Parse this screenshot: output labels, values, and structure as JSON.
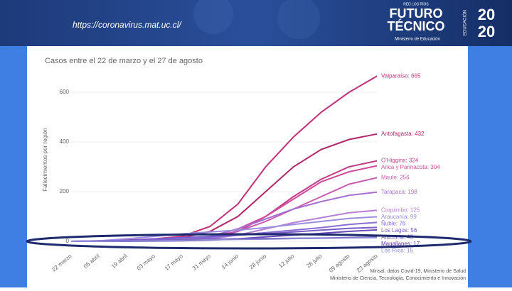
{
  "header": {
    "url": "https://coronavirus.mat.uc.cl/",
    "network": "RED LOS RÍOS",
    "brand_line1": "FUTURO",
    "brand_line2": "TÉCNICO",
    "ministry": "Ministerio de Educación",
    "side": "EDUCACIÓN",
    "year_top": "20",
    "year_bottom": "20"
  },
  "chart_data": {
    "type": "line",
    "title": "Casos entre el 22 de marzo y el 27 de agosto",
    "y_label": "Fallecimientos por región",
    "source": [
      "Minsal, datos Covid-19, Ministerio de Salud",
      "Ministerio de Ciencia, Tecnología, Conocimiento e Innovación"
    ],
    "categories": [
      "22 marzo",
      "05 abril",
      "19 abril",
      "03 mayo",
      "17 mayo",
      "31 mayo",
      "14 junio",
      "28 junio",
      "12 julio",
      "26 julio",
      "09 agosto",
      "23 agosto"
    ],
    "ylim": [
      0,
      700
    ],
    "yticks": [
      0,
      200,
      400,
      600
    ],
    "series": [
      {
        "name": "Valparaíso",
        "end_label": "Valparaíso: 665",
        "color": "#c2307a",
        "values": [
          0,
          2,
          5,
          10,
          20,
          60,
          150,
          300,
          420,
          520,
          600,
          665
        ]
      },
      {
        "name": "Antofagasta",
        "end_label": "Antofagasta: 432",
        "color": "#b0286c",
        "values": [
          0,
          1,
          2,
          5,
          15,
          40,
          100,
          200,
          300,
          370,
          410,
          432
        ]
      },
      {
        "name": "O'Higgins",
        "end_label": "O'Higgins: 324",
        "color": "#c33c88",
        "values": [
          0,
          0,
          1,
          2,
          5,
          15,
          40,
          100,
          180,
          250,
          300,
          324
        ]
      },
      {
        "name": "Arica y Parinacota",
        "end_label": "Arica y Parinacota: 304",
        "color": "#d04c98",
        "values": [
          0,
          1,
          3,
          5,
          10,
          20,
          50,
          100,
          170,
          240,
          280,
          304
        ]
      },
      {
        "name": "Maule",
        "end_label": "Maule: 256",
        "color": "#c95bb0",
        "values": [
          0,
          1,
          3,
          6,
          10,
          20,
          40,
          80,
          130,
          180,
          230,
          256
        ]
      },
      {
        "name": "Tarapacá",
        "end_label": "Tarapacá: 198",
        "color": "#a66fd2",
        "values": [
          0,
          0,
          1,
          3,
          8,
          20,
          50,
          90,
          130,
          160,
          185,
          198
        ]
      },
      {
        "name": "Coquimbo",
        "end_label": "Coquimbo: 125",
        "color": "#b77fd6",
        "values": [
          0,
          0,
          1,
          2,
          4,
          10,
          25,
          50,
          75,
          95,
          115,
          125
        ]
      },
      {
        "name": "Araucanía",
        "end_label": "Araucanía: 99",
        "color": "#9b8ee0",
        "values": [
          0,
          2,
          10,
          20,
          30,
          38,
          45,
          55,
          68,
          80,
          92,
          99
        ]
      },
      {
        "name": "Ñuble",
        "end_label": "Ñuble: 76",
        "color": "#8a6fd8",
        "values": [
          0,
          1,
          3,
          6,
          10,
          15,
          25,
          35,
          45,
          55,
          68,
          76
        ]
      },
      {
        "name": "Los Lagos",
        "end_label": "Los Lagos: 56",
        "color": "#7a5cc8",
        "values": [
          0,
          1,
          4,
          10,
          15,
          20,
          25,
          30,
          38,
          45,
          52,
          56
        ]
      },
      {
        "name": "Atacama",
        "end_label": "Atacama: 46",
        "color": "#6a4ab8",
        "values": [
          0,
          0,
          0,
          1,
          2,
          5,
          10,
          18,
          25,
          32,
          40,
          46
        ]
      },
      {
        "name": "Magallanes",
        "end_label": "Magallanes: 17",
        "color": "#5a3aa8",
        "values": [
          0,
          0,
          1,
          3,
          5,
          8,
          10,
          11,
          12,
          13,
          15,
          17
        ]
      },
      {
        "name": "Los Ríos",
        "end_label": "Los Ríos: 15",
        "color": "#8d8ad8",
        "values": [
          0,
          0,
          1,
          2,
          4,
          6,
          8,
          9,
          11,
          12,
          14,
          15
        ]
      }
    ]
  }
}
